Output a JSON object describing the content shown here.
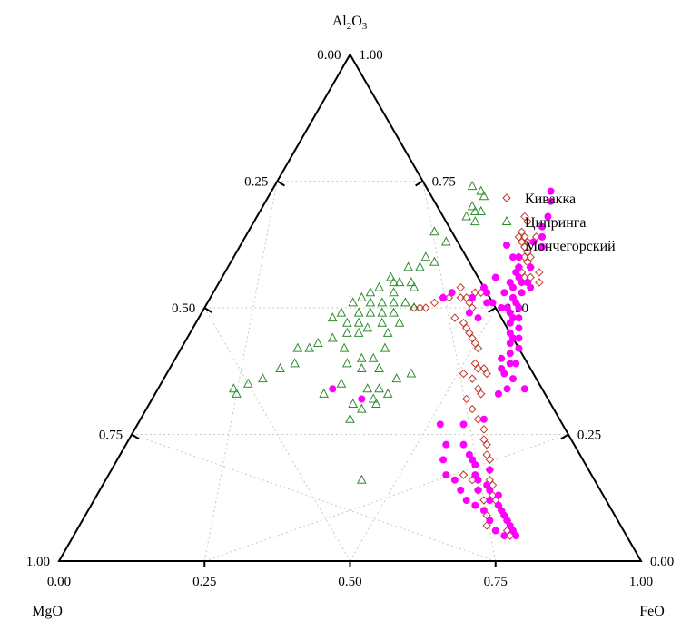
{
  "chart_data": {
    "type": "scatter",
    "subtype": "ternary",
    "grid": true,
    "legend_position": "top-right",
    "apices": {
      "top": {
        "label": "Al",
        "sub": "2",
        "label2": "O",
        "sub2": "3"
      },
      "left": {
        "label": "MgO"
      },
      "right": {
        "label": "FeO"
      }
    },
    "ticks": [
      "0.00",
      "0.25",
      "0.50",
      "0.75",
      "1.00"
    ],
    "tick_values": [
      0,
      0.25,
      0.5,
      0.75,
      1
    ],
    "series": [
      {
        "name": "Кивакка",
        "color": "#c0392b",
        "marker": "diamond-open",
        "points": [
          [
            0.46,
            0.32
          ],
          [
            0.47,
            0.33
          ],
          [
            0.47,
            0.35
          ],
          [
            0.47,
            0.36
          ],
          [
            0.48,
            0.36
          ],
          [
            0.48,
            0.37
          ],
          [
            0.49,
            0.37
          ],
          [
            0.5,
            0.36
          ],
          [
            0.49,
            0.38
          ],
          [
            0.5,
            0.39
          ],
          [
            0.49,
            0.4
          ],
          [
            0.5,
            0.4
          ],
          [
            0.51,
            0.4
          ],
          [
            0.51,
            0.41
          ],
          [
            0.5,
            0.42
          ],
          [
            0.52,
            0.42
          ],
          [
            0.51,
            0.43
          ],
          [
            0.52,
            0.44
          ],
          [
            0.53,
            0.44
          ],
          [
            0.53,
            0.45
          ],
          [
            0.54,
            0.43
          ],
          [
            0.55,
            0.45
          ],
          [
            0.45,
            0.47
          ],
          [
            0.46,
            0.47
          ],
          [
            0.42,
            0.46
          ],
          [
            0.41,
            0.48
          ],
          [
            0.4,
            0.48
          ],
          [
            0.39,
            0.49
          ],
          [
            0.38,
            0.5
          ],
          [
            0.37,
            0.5
          ],
          [
            0.36,
            0.5
          ],
          [
            0.43,
            0.48
          ],
          [
            0.44,
            0.48
          ],
          [
            0.45,
            0.49
          ],
          [
            0.46,
            0.5
          ],
          [
            0.44,
            0.52
          ],
          [
            0.46,
            0.53
          ],
          [
            0.47,
            0.54
          ],
          [
            0.48,
            0.55
          ],
          [
            0.49,
            0.56
          ],
          [
            0.5,
            0.57
          ],
          [
            0.51,
            0.58
          ],
          [
            0.52,
            0.61
          ],
          [
            0.53,
            0.62
          ],
          [
            0.54,
            0.62
          ],
          [
            0.55,
            0.63
          ],
          [
            0.53,
            0.64
          ],
          [
            0.51,
            0.63
          ],
          [
            0.55,
            0.66
          ],
          [
            0.56,
            0.67
          ],
          [
            0.54,
            0.68
          ],
          [
            0.56,
            0.7
          ],
          [
            0.58,
            0.72
          ],
          [
            0.6,
            0.74
          ],
          [
            0.61,
            0.76
          ],
          [
            0.62,
            0.77
          ],
          [
            0.63,
            0.79
          ],
          [
            0.64,
            0.8
          ],
          [
            0.65,
            0.82
          ],
          [
            0.66,
            0.84
          ],
          [
            0.67,
            0.85
          ],
          [
            0.68,
            0.87
          ],
          [
            0.69,
            0.88
          ],
          [
            0.7,
            0.89
          ],
          [
            0.71,
            0.9
          ],
          [
            0.72,
            0.91
          ],
          [
            0.73,
            0.92
          ],
          [
            0.74,
            0.94
          ],
          [
            0.75,
            0.95
          ],
          [
            0.67,
            0.88
          ],
          [
            0.69,
            0.91
          ],
          [
            0.7,
            0.93
          ],
          [
            0.63,
            0.84
          ],
          [
            0.61,
            0.83
          ],
          [
            0.65,
            0.86
          ]
        ]
      },
      {
        "name": "Ципринга",
        "color": "#2e8b2e",
        "marker": "triangle-open",
        "points": [
          [
            0.34,
            0.26
          ],
          [
            0.36,
            0.27
          ],
          [
            0.37,
            0.28
          ],
          [
            0.36,
            0.3
          ],
          [
            0.37,
            0.31
          ],
          [
            0.38,
            0.31
          ],
          [
            0.38,
            0.33
          ],
          [
            0.36,
            0.32
          ],
          [
            0.32,
            0.35
          ],
          [
            0.35,
            0.37
          ],
          [
            0.33,
            0.4
          ],
          [
            0.35,
            0.41
          ],
          [
            0.33,
            0.42
          ],
          [
            0.31,
            0.42
          ],
          [
            0.29,
            0.44
          ],
          [
            0.3,
            0.45
          ],
          [
            0.31,
            0.45
          ],
          [
            0.33,
            0.45
          ],
          [
            0.34,
            0.46
          ],
          [
            0.31,
            0.47
          ],
          [
            0.28,
            0.46
          ],
          [
            0.27,
            0.47
          ],
          [
            0.26,
            0.48
          ],
          [
            0.25,
            0.49
          ],
          [
            0.28,
            0.49
          ],
          [
            0.3,
            0.49
          ],
          [
            0.32,
            0.49
          ],
          [
            0.34,
            0.49
          ],
          [
            0.36,
            0.5
          ],
          [
            0.33,
            0.51
          ],
          [
            0.31,
            0.51
          ],
          [
            0.29,
            0.51
          ],
          [
            0.27,
            0.51
          ],
          [
            0.24,
            0.51
          ],
          [
            0.23,
            0.52
          ],
          [
            0.26,
            0.53
          ],
          [
            0.28,
            0.53
          ],
          [
            0.3,
            0.54
          ],
          [
            0.32,
            0.53
          ],
          [
            0.35,
            0.53
          ],
          [
            0.34,
            0.55
          ],
          [
            0.29,
            0.55
          ],
          [
            0.27,
            0.55
          ],
          [
            0.25,
            0.56
          ],
          [
            0.23,
            0.57
          ],
          [
            0.22,
            0.58
          ],
          [
            0.2,
            0.58
          ],
          [
            0.21,
            0.61
          ],
          [
            0.19,
            0.62
          ],
          [
            0.17,
            0.64
          ],
          [
            0.15,
            0.65
          ],
          [
            0.14,
            0.67
          ],
          [
            0.13,
            0.66
          ],
          [
            0.35,
            0.58
          ],
          [
            0.34,
            0.6
          ],
          [
            0.36,
            0.62
          ],
          [
            0.33,
            0.62
          ],
          [
            0.32,
            0.6
          ],
          [
            0.28,
            0.58
          ],
          [
            0.3,
            0.61
          ],
          [
            0.36,
            0.66
          ],
          [
            0.38,
            0.66
          ],
          [
            0.4,
            0.67
          ],
          [
            0.38,
            0.68
          ],
          [
            0.39,
            0.69
          ],
          [
            0.37,
            0.7
          ],
          [
            0.35,
            0.69
          ],
          [
            0.36,
            0.72
          ],
          [
            0.31,
            0.65
          ],
          [
            0.29,
            0.67
          ],
          [
            0.42,
            0.63
          ],
          [
            0.4,
            0.64
          ],
          [
            0.44,
            0.84
          ]
        ]
      },
      {
        "name": "Мончегорский",
        "color": "#ff00ff",
        "marker": "dot-filled",
        "points": [
          [
            0.48,
            0.27
          ],
          [
            0.49,
            0.29
          ],
          [
            0.5,
            0.32
          ],
          [
            0.5,
            0.34
          ],
          [
            0.51,
            0.36
          ],
          [
            0.5,
            0.37
          ],
          [
            0.52,
            0.38
          ],
          [
            0.49,
            0.4
          ],
          [
            0.48,
            0.4
          ],
          [
            0.5,
            0.42
          ],
          [
            0.52,
            0.42
          ],
          [
            0.5,
            0.43
          ],
          [
            0.51,
            0.44
          ],
          [
            0.52,
            0.45
          ],
          [
            0.53,
            0.45
          ],
          [
            0.54,
            0.46
          ],
          [
            0.51,
            0.46
          ],
          [
            0.53,
            0.47
          ],
          [
            0.52,
            0.48
          ],
          [
            0.53,
            0.49
          ],
          [
            0.54,
            0.5
          ],
          [
            0.52,
            0.5
          ],
          [
            0.53,
            0.51
          ],
          [
            0.54,
            0.52
          ],
          [
            0.55,
            0.52
          ],
          [
            0.54,
            0.53
          ],
          [
            0.56,
            0.54
          ],
          [
            0.55,
            0.55
          ],
          [
            0.56,
            0.56
          ],
          [
            0.57,
            0.56
          ],
          [
            0.56,
            0.57
          ],
          [
            0.58,
            0.58
          ],
          [
            0.57,
            0.59
          ],
          [
            0.56,
            0.6
          ],
          [
            0.58,
            0.61
          ],
          [
            0.59,
            0.61
          ],
          [
            0.57,
            0.62
          ],
          [
            0.58,
            0.63
          ],
          [
            0.6,
            0.64
          ],
          [
            0.6,
            0.66
          ],
          [
            0.63,
            0.66
          ],
          [
            0.59,
            0.67
          ],
          [
            0.47,
            0.47
          ],
          [
            0.48,
            0.49
          ],
          [
            0.46,
            0.51
          ],
          [
            0.48,
            0.52
          ],
          [
            0.47,
            0.44
          ],
          [
            0.46,
            0.46
          ],
          [
            0.45,
            0.48
          ],
          [
            0.5,
            0.47
          ],
          [
            0.49,
            0.49
          ],
          [
            0.51,
            0.5
          ],
          [
            0.4,
            0.48
          ],
          [
            0.41,
            0.47
          ],
          [
            0.5,
            0.45
          ],
          [
            0.3,
            0.66
          ],
          [
            0.36,
            0.68
          ],
          [
            0.52,
            0.73
          ],
          [
            0.56,
            0.73
          ],
          [
            0.59,
            0.72
          ],
          [
            0.55,
            0.77
          ],
          [
            0.56,
            0.8
          ],
          [
            0.58,
            0.77
          ],
          [
            0.6,
            0.79
          ],
          [
            0.61,
            0.8
          ],
          [
            0.62,
            0.81
          ],
          [
            0.63,
            0.83
          ],
          [
            0.65,
            0.82
          ],
          [
            0.64,
            0.84
          ],
          [
            0.66,
            0.85
          ],
          [
            0.65,
            0.86
          ],
          [
            0.67,
            0.86
          ],
          [
            0.68,
            0.88
          ],
          [
            0.69,
            0.87
          ],
          [
            0.7,
            0.89
          ],
          [
            0.71,
            0.9
          ],
          [
            0.72,
            0.91
          ],
          [
            0.73,
            0.92
          ],
          [
            0.74,
            0.93
          ],
          [
            0.75,
            0.94
          ],
          [
            0.76,
            0.95
          ],
          [
            0.74,
            0.95
          ],
          [
            0.62,
            0.86
          ],
          [
            0.6,
            0.84
          ],
          [
            0.64,
            0.88
          ],
          [
            0.58,
            0.83
          ],
          [
            0.66,
            0.89
          ],
          [
            0.68,
            0.9
          ],
          [
            0.7,
            0.92
          ],
          [
            0.72,
            0.94
          ]
        ]
      }
    ]
  }
}
